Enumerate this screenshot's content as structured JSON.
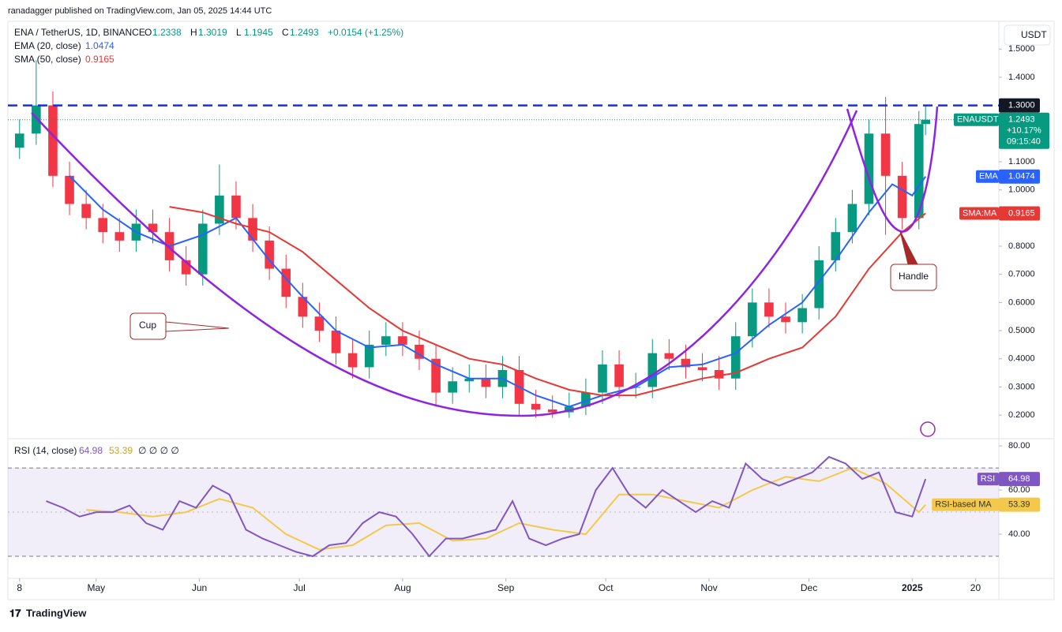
{
  "header": {
    "publisher": "ranadagger published on TradingView.com, Jan 05, 2025 14:44 UTC",
    "symbol": "ENA / TetherUS, 1D, BINANCE",
    "ohlc": [
      {
        "label": "O",
        "value": "1.2338"
      },
      {
        "label": "H",
        "value": "1.3019"
      },
      {
        "label": "L",
        "value": "1.1945"
      },
      {
        "label": "C",
        "value": "1.2493"
      }
    ],
    "change": "+0.0154 (+1.25%)",
    "ema_label": "EMA (20, close)",
    "sma_label": "SMA (50, close)",
    "rsi_label": "RSI (14, close)",
    "rsi_na": "∅ ∅ ∅ ∅",
    "currency": "USDT"
  },
  "chart_data": [
    {
      "type": "candlestick",
      "x": [
        0,
        5,
        10,
        15,
        20,
        25,
        30,
        35,
        40,
        45,
        50,
        55,
        60,
        65,
        70,
        75,
        80,
        85,
        90,
        95,
        100,
        105,
        110,
        115,
        120,
        125,
        130,
        135,
        140,
        145,
        150,
        155,
        160,
        165,
        170,
        175,
        180,
        185,
        190,
        195,
        200,
        205,
        210,
        215,
        220,
        225,
        230,
        235,
        240,
        245,
        250,
        255,
        260,
        265,
        270,
        272
      ],
      "open": [
        1.15,
        1.2,
        1.3,
        1.05,
        0.95,
        0.9,
        0.85,
        0.82,
        0.88,
        0.85,
        0.75,
        0.7,
        0.88,
        0.98,
        0.9,
        0.82,
        0.72,
        0.62,
        0.55,
        0.5,
        0.42,
        0.37,
        0.45,
        0.48,
        0.45,
        0.4,
        0.28,
        0.32,
        0.33,
        0.3,
        0.36,
        0.24,
        0.22,
        0.21,
        0.23,
        0.28,
        0.38,
        0.3,
        0.3,
        0.42,
        0.4,
        0.37,
        0.36,
        0.33,
        0.48,
        0.6,
        0.55,
        0.53,
        0.58,
        0.75,
        0.85,
        0.95,
        1.2,
        1.05,
        0.9,
        1.2338
      ],
      "high": [
        1.25,
        1.46,
        1.35,
        1.1,
        1.0,
        0.95,
        0.9,
        0.93,
        0.93,
        0.9,
        0.8,
        0.93,
        1.09,
        1.03,
        0.95,
        0.87,
        0.77,
        0.67,
        0.6,
        0.55,
        0.47,
        0.5,
        0.53,
        0.53,
        0.5,
        0.45,
        0.37,
        0.38,
        0.38,
        0.41,
        0.41,
        0.29,
        0.27,
        0.28,
        0.33,
        0.43,
        0.43,
        0.35,
        0.47,
        0.47,
        0.45,
        0.42,
        0.41,
        0.53,
        0.65,
        0.65,
        0.6,
        0.63,
        0.8,
        0.9,
        1.0,
        1.25,
        1.33,
        1.1,
        1.28,
        1.3019
      ],
      "low": [
        1.11,
        1.16,
        1.01,
        0.91,
        0.86,
        0.81,
        0.78,
        0.78,
        0.81,
        0.71,
        0.66,
        0.66,
        0.84,
        0.86,
        0.78,
        0.68,
        0.58,
        0.51,
        0.46,
        0.38,
        0.33,
        0.33,
        0.41,
        0.41,
        0.36,
        0.23,
        0.24,
        0.28,
        0.26,
        0.26,
        0.2,
        0.19,
        0.19,
        0.19,
        0.2,
        0.24,
        0.26,
        0.26,
        0.26,
        0.36,
        0.33,
        0.32,
        0.29,
        0.29,
        0.44,
        0.51,
        0.49,
        0.49,
        0.54,
        0.71,
        0.81,
        0.91,
        0.84,
        0.86,
        0.86,
        1.1945
      ],
      "close": [
        1.2,
        1.3,
        1.05,
        0.95,
        0.9,
        0.85,
        0.82,
        0.88,
        0.85,
        0.75,
        0.7,
        0.88,
        0.98,
        0.9,
        0.82,
        0.72,
        0.62,
        0.55,
        0.5,
        0.42,
        0.37,
        0.45,
        0.48,
        0.45,
        0.4,
        0.28,
        0.32,
        0.33,
        0.3,
        0.36,
        0.24,
        0.22,
        0.21,
        0.23,
        0.28,
        0.38,
        0.3,
        0.3,
        0.42,
        0.4,
        0.37,
        0.36,
        0.33,
        0.48,
        0.6,
        0.55,
        0.53,
        0.58,
        0.75,
        0.85,
        0.95,
        1.2,
        1.05,
        0.9,
        1.2339,
        1.2493
      ],
      "colors": {
        "up": "#089981",
        "down": "#f23645"
      },
      "xlim": [
        -3.5,
        294
      ],
      "xticks": [
        {
          "value": 0,
          "label": "8"
        },
        {
          "value": 23,
          "label": "May"
        },
        {
          "value": 54,
          "label": "Jun"
        },
        {
          "value": 84,
          "label": "Jul"
        },
        {
          "value": 115,
          "label": "Aug"
        },
        {
          "value": 146,
          "label": "Sep"
        },
        {
          "value": 176,
          "label": "Oct"
        },
        {
          "value": 207,
          "label": "Nov"
        },
        {
          "value": 237,
          "label": "Dec"
        },
        {
          "value": 268,
          "label": "2025"
        },
        {
          "value": 287,
          "label": "20"
        }
      ],
      "ylim": [
        0.119,
        1.596
      ],
      "yticks": [
        {
          "value": 0.2,
          "label": "0.2000"
        },
        {
          "value": 0.3,
          "label": "0.3000"
        },
        {
          "value": 0.4,
          "label": "0.4000"
        },
        {
          "value": 0.5,
          "label": "0.5000"
        },
        {
          "value": 0.6,
          "label": "0.6000"
        },
        {
          "value": 0.7,
          "label": "0.7000"
        },
        {
          "value": 0.8,
          "label": "0.8000"
        },
        {
          "value": 0.9,
          "label": "0.9000"
        },
        {
          "value": 1.0,
          "label": "1.0000"
        },
        {
          "value": 1.1,
          "label": "1.1000"
        },
        {
          "value": 1.4,
          "label": "1.4000"
        },
        {
          "value": 1.5,
          "label": "1.5000"
        }
      ],
      "series": [
        {
          "name": "EMA",
          "color": "#2962ff",
          "x": [
            15,
            25,
            35,
            45,
            55,
            65,
            75,
            85,
            95,
            105,
            115,
            125,
            135,
            145,
            155,
            165,
            175,
            185,
            195,
            205,
            215,
            225,
            235,
            245,
            255,
            262,
            268,
            272
          ],
          "values": [
            1.05,
            0.93,
            0.85,
            0.8,
            0.84,
            0.9,
            0.75,
            0.62,
            0.5,
            0.44,
            0.45,
            0.38,
            0.33,
            0.33,
            0.27,
            0.23,
            0.27,
            0.3,
            0.37,
            0.38,
            0.42,
            0.52,
            0.6,
            0.75,
            0.92,
            1.02,
            0.98,
            1.0474
          ]
        },
        {
          "name": "SMA:MA",
          "color": "#e53935",
          "x": [
            45,
            55,
            65,
            75,
            85,
            95,
            105,
            115,
            125,
            135,
            145,
            155,
            165,
            175,
            185,
            195,
            205,
            215,
            225,
            235,
            245,
            255,
            265,
            272
          ],
          "values": [
            0.94,
            0.92,
            0.88,
            0.85,
            0.78,
            0.68,
            0.58,
            0.5,
            0.45,
            0.4,
            0.38,
            0.33,
            0.29,
            0.27,
            0.27,
            0.3,
            0.33,
            0.35,
            0.4,
            0.44,
            0.55,
            0.72,
            0.85,
            0.9165
          ]
        }
      ],
      "level": {
        "value": 1.3,
        "label": "1.3000",
        "color": "#1e2fd6"
      },
      "last": {
        "name": "ENAUSDT",
        "change": "+10.17%",
        "countdown": "09:15:40"
      },
      "annotations": [
        "Cup",
        "Handle"
      ]
    },
    {
      "type": "line",
      "xlim": [
        -3.5,
        294
      ],
      "ylim": [
        20,
        82.9
      ],
      "yticks": [
        {
          "value": 40,
          "label": "40.00"
        },
        {
          "value": 60,
          "label": "60.00"
        },
        {
          "value": 80,
          "label": "80.00"
        }
      ],
      "band": [
        30,
        70
      ],
      "series": [
        {
          "name": "RSI",
          "color": "#7e57c2",
          "x": [
            8,
            13,
            18,
            23,
            28,
            33,
            38,
            43,
            48,
            53,
            58,
            63,
            68,
            73,
            78,
            83,
            88,
            93,
            98,
            103,
            108,
            113,
            118,
            123,
            128,
            133,
            138,
            143,
            148,
            153,
            158,
            163,
            168,
            173,
            178,
            183,
            188,
            193,
            198,
            203,
            208,
            213,
            218,
            223,
            228,
            233,
            238,
            243,
            248,
            253,
            258,
            263,
            268,
            272
          ],
          "values": [
            55,
            52,
            48,
            50,
            50,
            53,
            45,
            42,
            55,
            52,
            62,
            58,
            42,
            38,
            35,
            32,
            30,
            35,
            36,
            45,
            50,
            48,
            40,
            30,
            38,
            38,
            40,
            42,
            55,
            38,
            35,
            38,
            40,
            60,
            70,
            58,
            52,
            60,
            55,
            50,
            55,
            52,
            72,
            65,
            62,
            65,
            68,
            75,
            72,
            65,
            68,
            50,
            48,
            64.98
          ]
        },
        {
          "name": "RSI-based MA",
          "color": "#f2c94c",
          "x": [
            20,
            30,
            40,
            50,
            60,
            70,
            80,
            90,
            100,
            110,
            120,
            130,
            140,
            150,
            160,
            170,
            180,
            190,
            200,
            210,
            220,
            230,
            240,
            250,
            260,
            270,
            272
          ],
          "values": [
            51,
            50,
            48,
            50,
            56,
            52,
            40,
            33,
            35,
            44,
            45,
            37,
            38,
            45,
            42,
            40,
            58,
            58,
            55,
            52,
            60,
            66,
            64,
            70,
            63,
            50,
            53.39
          ]
        }
      ]
    }
  ],
  "footer": "TradingView"
}
